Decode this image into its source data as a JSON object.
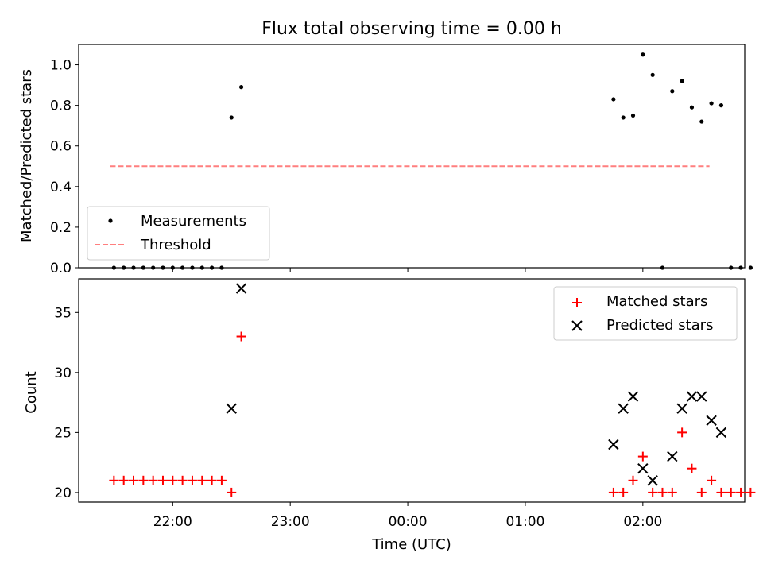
{
  "chart_data": [
    {
      "type": "scatter",
      "title": "Flux total observing time = 0.00 h",
      "xlabel": "",
      "ylabel": "Matched/Predicted stars",
      "ylim": [
        0,
        1.1
      ],
      "yticks": [
        "0.0",
        "0.2",
        "0.4",
        "0.6",
        "0.8",
        "1.0"
      ],
      "xlim": [
        "21:12",
        "02:52"
      ],
      "legend_position": "lower-left",
      "series": [
        {
          "name": "Measurements",
          "marker": "dot",
          "color": "#000000",
          "points": [
            {
              "x": "21:30",
              "y": 0.0
            },
            {
              "x": "21:35",
              "y": 0.0
            },
            {
              "x": "21:40",
              "y": 0.0
            },
            {
              "x": "21:45",
              "y": 0.0
            },
            {
              "x": "21:50",
              "y": 0.0
            },
            {
              "x": "21:55",
              "y": 0.0
            },
            {
              "x": "22:00",
              "y": 0.0
            },
            {
              "x": "22:05",
              "y": 0.0
            },
            {
              "x": "22:10",
              "y": 0.0
            },
            {
              "x": "22:15",
              "y": 0.0
            },
            {
              "x": "22:20",
              "y": 0.0
            },
            {
              "x": "22:25",
              "y": 0.0
            },
            {
              "x": "22:30",
              "y": 0.74
            },
            {
              "x": "22:35",
              "y": 0.89
            },
            {
              "x": "01:45",
              "y": 0.83
            },
            {
              "x": "01:50",
              "y": 0.74
            },
            {
              "x": "01:55",
              "y": 0.75
            },
            {
              "x": "02:00",
              "y": 1.05
            },
            {
              "x": "02:05",
              "y": 0.95
            },
            {
              "x": "02:10",
              "y": 0.0
            },
            {
              "x": "02:15",
              "y": 0.87
            },
            {
              "x": "02:20",
              "y": 0.92
            },
            {
              "x": "02:25",
              "y": 0.79
            },
            {
              "x": "02:30",
              "y": 0.72
            },
            {
              "x": "02:35",
              "y": 0.81
            },
            {
              "x": "02:40",
              "y": 0.8
            },
            {
              "x": "02:45",
              "y": 0.0
            },
            {
              "x": "02:50",
              "y": 0.0
            },
            {
              "x": "02:55",
              "y": 0.0
            }
          ]
        },
        {
          "name": "Threshold",
          "style": "dashed-line",
          "color": "#ff7f7f",
          "points": [
            {
              "x": "21:28",
              "y": 0.5
            },
            {
              "x": "02:34",
              "y": 0.5
            }
          ]
        }
      ]
    },
    {
      "type": "scatter",
      "title": "",
      "xlabel": "Time (UTC)",
      "ylabel": "Count",
      "ylim": [
        19.2,
        37.8
      ],
      "yticks": [
        "20",
        "25",
        "30",
        "35"
      ],
      "xlim": [
        "21:12",
        "02:52"
      ],
      "xticks": [
        "22:00",
        "23:00",
        "00:00",
        "01:00",
        "02:00"
      ],
      "legend_position": "top-right",
      "series": [
        {
          "name": "Matched stars",
          "marker": "plus",
          "color": "#ff0000",
          "points": [
            {
              "x": "21:30",
              "y": 21
            },
            {
              "x": "21:35",
              "y": 21
            },
            {
              "x": "21:40",
              "y": 21
            },
            {
              "x": "21:45",
              "y": 21
            },
            {
              "x": "21:50",
              "y": 21
            },
            {
              "x": "21:55",
              "y": 21
            },
            {
              "x": "22:00",
              "y": 21
            },
            {
              "x": "22:05",
              "y": 21
            },
            {
              "x": "22:10",
              "y": 21
            },
            {
              "x": "22:15",
              "y": 21
            },
            {
              "x": "22:20",
              "y": 21
            },
            {
              "x": "22:25",
              "y": 21
            },
            {
              "x": "22:30",
              "y": 20
            },
            {
              "x": "22:35",
              "y": 33
            },
            {
              "x": "01:45",
              "y": 20
            },
            {
              "x": "01:50",
              "y": 20
            },
            {
              "x": "01:55",
              "y": 21
            },
            {
              "x": "02:00",
              "y": 23
            },
            {
              "x": "02:05",
              "y": 20
            },
            {
              "x": "02:10",
              "y": 20
            },
            {
              "x": "02:15",
              "y": 20
            },
            {
              "x": "02:20",
              "y": 25
            },
            {
              "x": "02:25",
              "y": 22
            },
            {
              "x": "02:30",
              "y": 20
            },
            {
              "x": "02:35",
              "y": 21
            },
            {
              "x": "02:40",
              "y": 20
            },
            {
              "x": "02:45",
              "y": 20
            },
            {
              "x": "02:50",
              "y": 20
            },
            {
              "x": "02:55",
              "y": 20
            }
          ]
        },
        {
          "name": "Predicted stars",
          "marker": "x",
          "color": "#000000",
          "points": [
            {
              "x": "22:30",
              "y": 27
            },
            {
              "x": "22:35",
              "y": 37
            },
            {
              "x": "01:45",
              "y": 24
            },
            {
              "x": "01:50",
              "y": 27
            },
            {
              "x": "01:55",
              "y": 28
            },
            {
              "x": "02:00",
              "y": 22
            },
            {
              "x": "02:05",
              "y": 21
            },
            {
              "x": "02:15",
              "y": 23
            },
            {
              "x": "02:20",
              "y": 27
            },
            {
              "x": "02:25",
              "y": 28
            },
            {
              "x": "02:30",
              "y": 28
            },
            {
              "x": "02:35",
              "y": 26
            },
            {
              "x": "02:40",
              "y": 25
            }
          ]
        }
      ]
    }
  ]
}
